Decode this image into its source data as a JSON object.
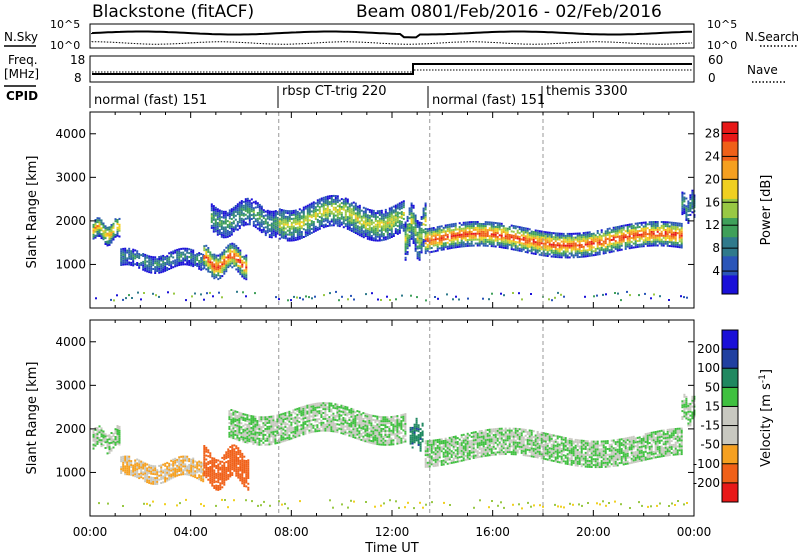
{
  "header": {
    "title": "Blackstone (fitACF)",
    "beam": "Beam 08",
    "date_range": "01/Feb/2016 - 02/Feb/2016"
  },
  "sky_panel": {
    "left_label": "N.Sky",
    "right_label": "N.Search",
    "left_ticks": [
      "10^5",
      "10^0"
    ],
    "right_ticks": [
      "10^5",
      "10^0"
    ],
    "right_line_style": "dotted"
  },
  "freq_panel": {
    "left_label_line1": "Freq.",
    "left_label_line2": "[MHz]",
    "right_label": "Nave",
    "left_ticks": [
      "18",
      "8"
    ],
    "right_ticks": [
      "60",
      "0"
    ],
    "right_line_style": "dotted"
  },
  "cpid_panel": {
    "label": "CPID",
    "segments": [
      {
        "label": "normal (fast) 151",
        "start_hour": 0.0
      },
      {
        "label": "rbsp CT-trig 220",
        "start_hour": 7.5
      },
      {
        "label": "normal (fast) 151",
        "start_hour": 13.5
      },
      {
        "label": "themis 3300",
        "start_hour": 18.0
      }
    ]
  },
  "colors": {
    "power_scale": [
      "#1a10d8",
      "#2a55b8",
      "#2f7a8c",
      "#3fa05a",
      "#98c844",
      "#f0d020",
      "#f5a020",
      "#f06018",
      "#e81818"
    ],
    "velocity_scale": [
      "#e81818",
      "#f06018",
      "#f5a020",
      "#c8c8c0",
      "#c8c8c0",
      "#40c040",
      "#208860",
      "#2040a0",
      "#1a10d8"
    ]
  },
  "chart_data": [
    {
      "type": "heatmap",
      "title": "",
      "xlabel": "",
      "ylabel": "Slant Range [km]",
      "xlim": [
        0,
        24
      ],
      "ylim": [
        0,
        4500
      ],
      "x_ticks": [
        "00:00",
        "04:00",
        "08:00",
        "12:00",
        "16:00",
        "20:00",
        "00:00"
      ],
      "y_ticks": [
        "1000",
        "2000",
        "3000",
        "4000"
      ],
      "colorbar_label": "Power [dB]",
      "colorbar_ticks": [
        "4",
        "8",
        "12",
        "16",
        "20",
        "24",
        "28"
      ],
      "colorbar_range": [
        0,
        30
      ],
      "echo_bands": [
        {
          "from_hour": 0.1,
          "to_hour": 1.2,
          "center_km": 1750,
          "width_km": 450,
          "peak_db": 22
        },
        {
          "from_hour": 1.2,
          "to_hour": 4.5,
          "center_km": 1080,
          "width_km": 400,
          "peak_db": 10
        },
        {
          "from_hour": 4.5,
          "to_hour": 6.2,
          "center_km": 1050,
          "width_km": 550,
          "peak_db": 28
        },
        {
          "from_hour": 4.8,
          "to_hour": 7.5,
          "center_km": 2050,
          "width_km": 600,
          "peak_db": 12
        },
        {
          "from_hour": 7.5,
          "to_hour": 12.5,
          "center_km": 2050,
          "width_km": 700,
          "peak_db": 18
        },
        {
          "from_hour": 12.5,
          "to_hour": 13.3,
          "center_km": 1750,
          "width_km": 900,
          "peak_db": 16
        },
        {
          "from_hour": 13.3,
          "to_hour": 23.5,
          "center_km": 1550,
          "width_km": 550,
          "peak_db": 28
        },
        {
          "from_hour": 23.5,
          "to_hour": 24.0,
          "center_km": 2300,
          "width_km": 500,
          "peak_db": 12
        }
      ]
    },
    {
      "type": "heatmap",
      "title": "",
      "xlabel": "Time UT",
      "ylabel": "Slant Range [km]",
      "xlim": [
        0,
        24
      ],
      "ylim": [
        0,
        4500
      ],
      "x_ticks": [
        "00:00",
        "04:00",
        "08:00",
        "12:00",
        "16:00",
        "20:00",
        "00:00"
      ],
      "y_ticks": [
        "1000",
        "2000",
        "3000",
        "4000"
      ],
      "colorbar_label": "Velocity [m s",
      "colorbar_label_sup": "-1",
      "colorbar_label_end": "]",
      "colorbar_ticks": [
        "200",
        "100",
        "50",
        "15",
        "-15",
        "-50",
        "-100",
        "-200"
      ],
      "echo_bands": [
        {
          "from_hour": 0.1,
          "to_hour": 1.2,
          "center_km": 1750,
          "width_km": 450,
          "velocity": 0
        },
        {
          "from_hour": 1.2,
          "to_hour": 4.5,
          "center_km": 1050,
          "width_km": 450,
          "velocity": -50
        },
        {
          "from_hour": 4.5,
          "to_hour": 6.3,
          "center_km": 1100,
          "width_km": 700,
          "velocity": -150
        },
        {
          "from_hour": 5.5,
          "to_hour": 12.5,
          "center_km": 2100,
          "width_km": 650,
          "velocity": 0
        },
        {
          "from_hour": 12.7,
          "to_hour": 13.2,
          "center_km": 1850,
          "width_km": 500,
          "velocity": 40
        },
        {
          "from_hour": 13.3,
          "to_hour": 23.5,
          "center_km": 1550,
          "width_km": 600,
          "velocity": 0
        },
        {
          "from_hour": 23.5,
          "to_hour": 24.0,
          "center_km": 2400,
          "width_km": 500,
          "velocity": 0
        }
      ]
    }
  ]
}
